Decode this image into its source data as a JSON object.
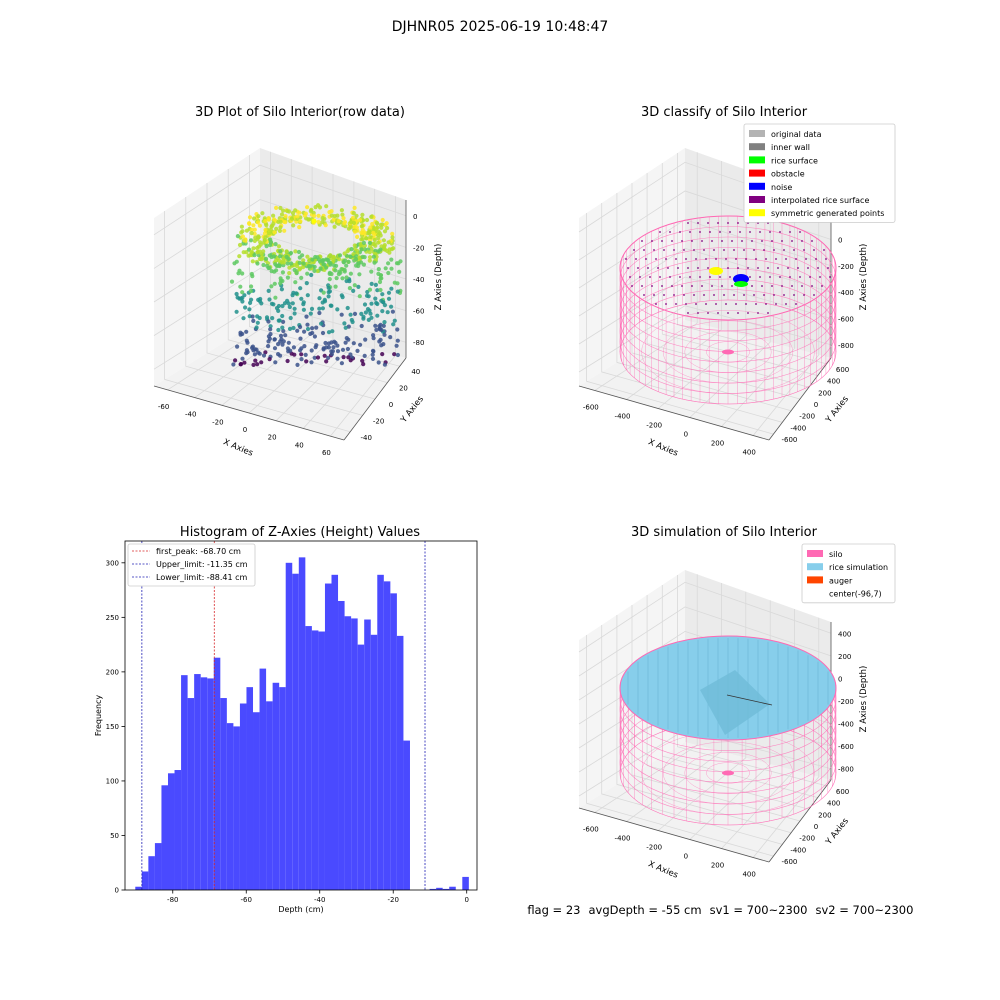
{
  "figure": {
    "suptitle": "DJHNR05 2025-06-19 10:48:47"
  },
  "footer": {
    "flag": "flag = 23",
    "avg": "avgDepth = -55 cm",
    "sv1": "sv1 = 700~2300",
    "sv2": "sv2 = 700~2300"
  },
  "colors": {
    "hist_bar": "#4a4aff",
    "peak_line": "#d62728",
    "limit_line": "#1f1fb4",
    "silo": "#ff69b4",
    "rice": "#87ceeb",
    "auger": "#ff4500",
    "original": "#b3b3b3",
    "inner_wall": "#808080",
    "rice_surface": "#00ff00",
    "obstacle": "#ff0000",
    "noise": "#0000ff",
    "interp": "#800080",
    "symmetric": "#ffff00"
  },
  "chart_data": [
    {
      "type": "scatter",
      "subtype": "3d",
      "title": "3D Plot of Silo Interior(row data)",
      "xlabel": "X Axies",
      "ylabel": "Y Axies",
      "zlabel": "Z Axies (Depth)",
      "x_ticks": [
        "-60",
        "-40",
        "-20",
        "0",
        "20",
        "40",
        "60"
      ],
      "y_ticks": [
        "-40",
        "-20",
        "0",
        "20",
        "40"
      ],
      "z_ticks": [
        "0",
        "-20",
        "-40",
        "-60",
        "-80"
      ],
      "xlim": [
        -70,
        60
      ],
      "ylim": [
        -45,
        45
      ],
      "zlim": [
        -95,
        0
      ],
      "colormap": "viridis",
      "grid": true
    },
    {
      "type": "scatter",
      "subtype": "3d",
      "title": "3D classify of Silo Interior",
      "xlabel": "X Axies",
      "ylabel": "Y Axies",
      "zlabel": "Z Axies (Depth)",
      "x_ticks": [
        "-600",
        "-400",
        "-200",
        "0",
        "200",
        "400"
      ],
      "y_ticks": [
        "-600",
        "-400",
        "-200",
        "0",
        "200",
        "400",
        "600"
      ],
      "z_ticks": [
        "200",
        "0",
        "-200",
        "-400",
        "-600",
        "-800"
      ],
      "legend": [
        "original data",
        "inner wall",
        "rice surface",
        "obstacle",
        "noise",
        "interpolated rice surface",
        "symmetric generated points"
      ],
      "legend_position": "top-right",
      "grid": true
    },
    {
      "type": "bar",
      "subtype": "histogram",
      "title": "Histogram of Z-Axies (Height) Values",
      "xlabel": "Depth (cm)",
      "ylabel": "Frequency",
      "x_ticks": [
        "-80",
        "-60",
        "-40",
        "-20",
        "0"
      ],
      "y_ticks": [
        "0",
        "50",
        "100",
        "150",
        "200",
        "250",
        "300"
      ],
      "xlim": [
        -93,
        2.8
      ],
      "ylim": [
        0,
        320
      ],
      "bin_start": -90.2,
      "bin_width": 1.78,
      "values": [
        3,
        17,
        31,
        43,
        96,
        107,
        110,
        197,
        176,
        198,
        195,
        194,
        213,
        176,
        153,
        150,
        171,
        186,
        163,
        203,
        173,
        190,
        186,
        300,
        290,
        305,
        242,
        238,
        237,
        281,
        289,
        265,
        251,
        249,
        225,
        248,
        234,
        289,
        283,
        272,
        233,
        137,
        0,
        0,
        0,
        1,
        2,
        1,
        3,
        0,
        12
      ],
      "vlines": [
        {
          "label": "first_peak: -68.70 cm",
          "x": -68.7,
          "kind": "peak"
        },
        {
          "label": "Upper_limit: -11.35 cm",
          "x": -11.35,
          "kind": "limit"
        },
        {
          "label": "Lower_limit: -88.41 cm",
          "x": -88.41,
          "kind": "limit"
        }
      ],
      "legend_position": "top-left"
    },
    {
      "type": "area",
      "subtype": "3d",
      "title": "3D simulation of Silo Interior",
      "xlabel": "X Axies",
      "ylabel": "Y Axies",
      "zlabel": "Z Axies (Depth)",
      "x_ticks": [
        "-600",
        "-400",
        "-200",
        "0",
        "200",
        "400"
      ],
      "y_ticks": [
        "-600",
        "-400",
        "-200",
        "0",
        "200",
        "400",
        "600"
      ],
      "z_ticks": [
        "400",
        "200",
        "0",
        "-200",
        "-400",
        "-600",
        "-800"
      ],
      "legend": [
        "silo",
        "rice simulation",
        "auger",
        "center(-96,7)"
      ],
      "legend_position": "top-right",
      "grid": true
    }
  ]
}
